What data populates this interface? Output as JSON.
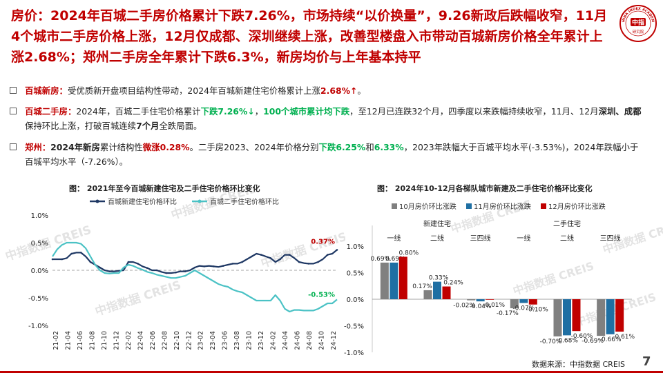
{
  "headline": "房价：2024年百城二手房价格累计下跌7.26%，市场持续“以价换量”，9.26新政后跌幅收窄，11月4个城市二手房价格上涨，12月仅成都、深圳继续上涨，改善型楼盘入市带动百城新房价格全年累计上涨2.68%；郑州二手房全年累计下跌6.3%，新房均价与上年基本持平",
  "logo": {
    "top_text": "CHINA INDEX ACADEMY",
    "center": "中指",
    "bottom": "研究院"
  },
  "bullets": [
    {
      "label": "百城新房：",
      "t1": "受优质新开盘项目结构性带动，2024年百城新建住宅价格累计上涨",
      "v1": "2.68%↑",
      "t2": "。"
    },
    {
      "label": "百城二手房：",
      "t1": "2024年，百城二手住宅价格累计",
      "v1": "下跌7.26%↓",
      "t2": "，",
      "v2": "100个城市累计均下跌",
      "t3": "，至12月已连跌32个月，四季度以来跌幅持续收窄，11月、12月",
      "v3": "深圳、成都",
      "t4": "保持环比上涨，打破百城连续",
      "v4": "7个月",
      "t5": "全跌局面。"
    },
    {
      "label": "郑州：",
      "v0": "2024年新房",
      "t1": "累计结构性",
      "v1": "微涨0.28%",
      "t2": "。二手房2023、2024年价格分别",
      "v2": "下跌6.25%",
      "t3": "和",
      "v3": "6.33%",
      "t4": "，2023年跌幅大于百城平均水平(-3.53%)，2024年跌幅小于百城平均水平（-7.26%）。"
    }
  ],
  "source": "数据来源：中指数据 CREIS",
  "page_number": "7",
  "watermark": "中指数据 CREIS",
  "colors": {
    "red": "#c00000",
    "green": "#00b050",
    "navy": "#1f3864",
    "teal": "#4bc2c5",
    "gray": "#808080",
    "blue": "#1f6fa3"
  },
  "chart_data": [
    {
      "type": "line",
      "title": "图：  2021年至今百城新建住宅及二手住宅价格环比变化",
      "ylim": [
        -1.0,
        1.0
      ],
      "yticks": [
        "1.0%",
        "0.5%",
        "0.0%",
        "-0.5%",
        "-1.0%"
      ],
      "ytick_values": [
        1.0,
        0.5,
        0.0,
        -0.5,
        -1.0
      ],
      "xtick_labels": [
        "21-02",
        "21-04",
        "21-06",
        "21-08",
        "21-10",
        "21-12",
        "22-02",
        "22-04",
        "22-06",
        "22-08",
        "22-10",
        "22-12",
        "23-02",
        "23-04",
        "23-06",
        "23-08",
        "23-10",
        "23-12",
        "24-02",
        "24-04",
        "24-06",
        "24-08",
        "24-10",
        "24-12"
      ],
      "legend_position": "top",
      "series": [
        {
          "name": "百城新建住宅价格环比",
          "color": "#1f3864",
          "values": [
            0.2,
            0.2,
            0.2,
            0.22,
            0.3,
            0.32,
            0.32,
            0.25,
            0.15,
            0.1,
            0.05,
            0.0,
            -0.02,
            -0.02,
            -0.01,
            0.0,
            0.15,
            0.15,
            0.12,
            0.07,
            0.04,
            0.0,
            0.0,
            -0.03,
            -0.05,
            -0.05,
            -0.04,
            -0.02,
            -0.02,
            0.0,
            0.05,
            0.08,
            0.07,
            0.08,
            0.07,
            0.06,
            0.08,
            0.1,
            0.12,
            0.12,
            0.15,
            0.2,
            0.25,
            0.3,
            0.28,
            0.25,
            0.22,
            0.15,
            0.2,
            0.28,
            0.28,
            0.22,
            0.15,
            0.13,
            0.12,
            0.12,
            0.15,
            0.2,
            0.28,
            0.3,
            0.37
          ],
          "end_label": "0.37%"
        },
        {
          "name": "百城二手住宅价格环比",
          "color": "#4bc2c5",
          "values": [
            0.25,
            0.38,
            0.46,
            0.5,
            0.5,
            0.5,
            0.48,
            0.4,
            0.25,
            0.1,
            0.0,
            -0.05,
            -0.06,
            -0.05,
            -0.05,
            0.05,
            0.1,
            0.08,
            0.04,
            0.01,
            -0.03,
            -0.05,
            -0.08,
            -0.1,
            -0.12,
            -0.14,
            -0.14,
            -0.12,
            -0.1,
            -0.05,
            0.0,
            -0.05,
            -0.1,
            -0.15,
            -0.2,
            -0.25,
            -0.28,
            -0.3,
            -0.35,
            -0.38,
            -0.4,
            -0.45,
            -0.5,
            -0.55,
            -0.55,
            -0.55,
            -0.55,
            -0.45,
            -0.55,
            -0.7,
            -0.75,
            -0.72,
            -0.72,
            -0.73,
            -0.73,
            -0.73,
            -0.7,
            -0.65,
            -0.6,
            -0.6,
            -0.53
          ],
          "end_label": "-0.53%"
        }
      ]
    },
    {
      "type": "bar",
      "title": "图：  2024年10-12月各梯队城市新建及二手住宅价格环比变化",
      "ylim": [
        -1.0,
        1.0
      ],
      "yticks": [
        "1.0%",
        "0.5%",
        "0.0%",
        "-0.5%",
        "-1.0%"
      ],
      "ytick_values": [
        1.0,
        0.5,
        0.0,
        -0.5,
        -1.0
      ],
      "legend_position": "top",
      "groups": [
        "新建住宅",
        "二手住宅"
      ],
      "categories": [
        "一线",
        "二线",
        "三四线",
        "一线",
        "二线",
        "三四线"
      ],
      "series": [
        {
          "name": "10月房价环比涨跌",
          "color": "#808080",
          "values": [
            0.69,
            0.17,
            -0.02,
            -0.17,
            -0.7,
            -0.69
          ],
          "labels": [
            "0.69%",
            "0.17%",
            "-0.02%",
            "-0.17%",
            "-0.70%",
            "-0.69%"
          ]
        },
        {
          "name": "11月房价环比涨跌",
          "color": "#1f6fa3",
          "values": [
            0.69,
            0.33,
            -0.04,
            -0.07,
            -0.68,
            -0.66
          ],
          "labels": [
            "0.69%",
            "0.33%",
            "-0.04%",
            "-0.07%",
            "-0.68%",
            "-0.66%"
          ]
        },
        {
          "name": "12月房价环比涨跌",
          "color": "#c00000",
          "values": [
            0.8,
            0.24,
            -0.01,
            -0.1,
            -0.6,
            -0.61
          ],
          "labels": [
            "0.80%",
            "0.24%",
            "-0.01%",
            "-0.10%",
            "-0.60%",
            "-0.61%"
          ]
        }
      ]
    }
  ]
}
